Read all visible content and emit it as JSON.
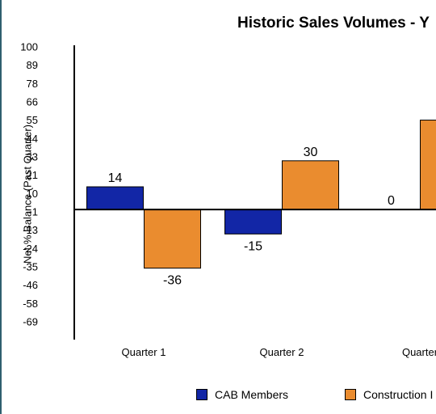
{
  "chart_data": {
    "type": "bar",
    "title": "Historic Sales Volumes - Y",
    "ylabel": "Net % Balance (Past Quarter)",
    "xlabel": "",
    "y_ticks": [
      "100",
      "89",
      "78",
      "66",
      "55",
      "44",
      "33",
      "21",
      "10",
      "-1",
      "-13",
      "-24",
      "-35",
      "-46",
      "-58",
      "-69"
    ],
    "ylim": [
      -80,
      100
    ],
    "categories": [
      "Quarter 1",
      "Quarter 2",
      "Quarter"
    ],
    "series": [
      {
        "name": "CAB Members",
        "color": "#1226a6",
        "values": [
          14,
          -15,
          0
        ],
        "labels": [
          "14",
          "-15",
          "0"
        ]
      },
      {
        "name": "Construction I",
        "color": "#ea8c2f",
        "values": [
          -36,
          30,
          55
        ],
        "labels": [
          "-36",
          "30",
          ""
        ]
      }
    ],
    "grid": false,
    "legend_position": "bottom"
  }
}
